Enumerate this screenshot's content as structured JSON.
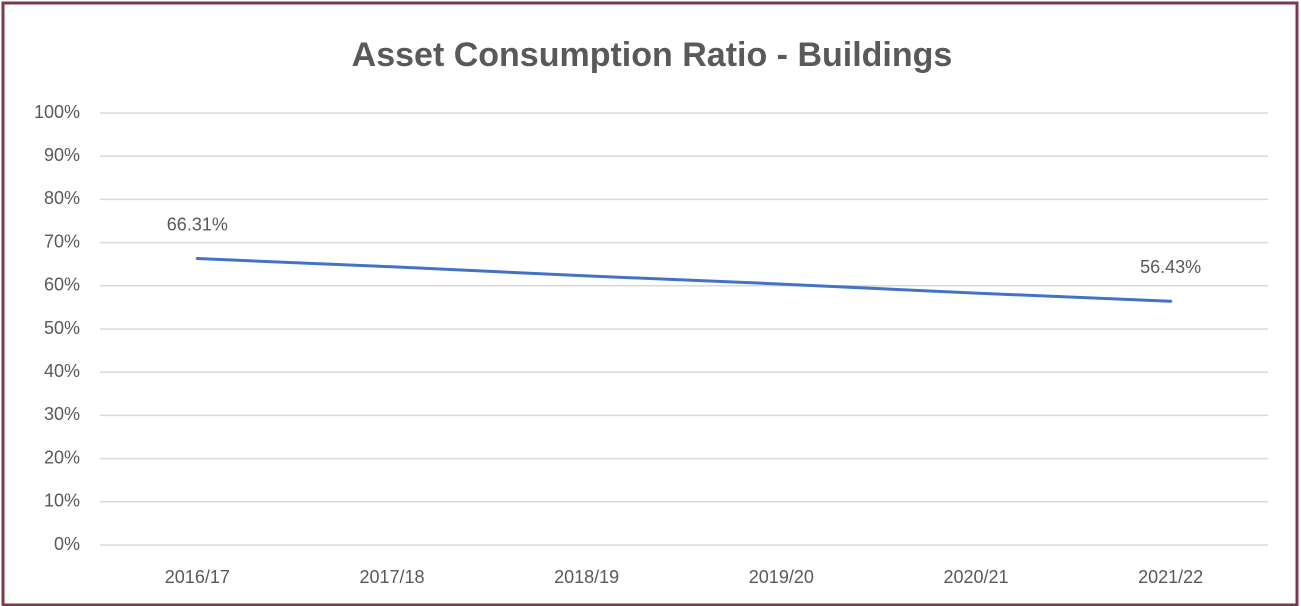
{
  "chart_data": {
    "type": "line",
    "title": "Asset Consumption Ratio - Buildings",
    "categories": [
      "2016/17",
      "2017/18",
      "2018/19",
      "2019/20",
      "2020/21",
      "2021/22"
    ],
    "series": [
      {
        "color": "#4472c4",
        "values": [
          66.31,
          64.4,
          62.3,
          60.4,
          58.3,
          56.43
        ],
        "value_labels": [
          "66.31%",
          null,
          null,
          null,
          null,
          "56.43%"
        ]
      }
    ],
    "ylim": [
      0,
      100
    ],
    "yticks": [
      {
        "value": 0,
        "label": "0%"
      },
      {
        "value": 10,
        "label": "10%"
      },
      {
        "value": 20,
        "label": "20%"
      },
      {
        "value": 30,
        "label": "30%"
      },
      {
        "value": 40,
        "label": "40%"
      },
      {
        "value": 50,
        "label": "50%"
      },
      {
        "value": 60,
        "label": "60%"
      },
      {
        "value": 70,
        "label": "70%"
      },
      {
        "value": 80,
        "label": "80%"
      },
      {
        "value": 90,
        "label": "90%"
      },
      {
        "value": 100,
        "label": "100%"
      }
    ],
    "grid": true
  }
}
